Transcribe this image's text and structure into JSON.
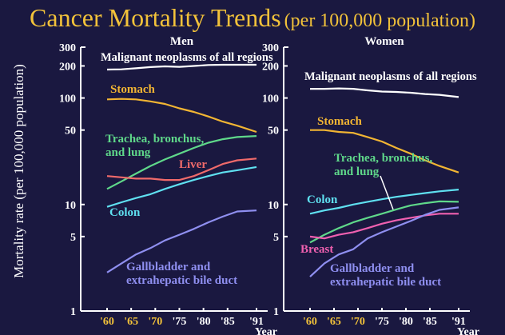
{
  "title": "Cancer Mortality Trends",
  "title_suffix": "(per 100,000 population)",
  "ylabel": "Mortality rate (per 100,000 population)",
  "colors": {
    "background": "#1a1840",
    "title": "#f2c23a",
    "axis": "#ffffff",
    "all": "#ffffff",
    "stomach": "#f2b533",
    "lung": "#5fd88a",
    "liver": "#f06a6a",
    "colon": "#5fe0f0",
    "gallbladder": "#8f8ff0",
    "breast": "#f060b0",
    "tick_highlight": "#f2c23a"
  },
  "chart_data": [
    {
      "type": "line",
      "title": "Men",
      "xlabel": "Year",
      "ylabel": "Mortality rate (per 100,000 population)",
      "yscale": "log",
      "ylim": [
        1,
        300
      ],
      "xlim": [
        1960,
        1991
      ],
      "yticks": [
        1,
        5,
        10,
        50,
        100,
        200,
        300
      ],
      "ytick_labels": [
        "1",
        "5",
        "10",
        "50",
        "100",
        "200",
        "300"
      ],
      "xticks": [
        1960,
        1965,
        1970,
        1975,
        1980,
        1985,
        1991
      ],
      "xtick_labels": [
        "'60",
        "'65",
        "'70",
        "'75",
        "'80",
        "'85",
        "'91"
      ],
      "x": [
        1960,
        1963,
        1966,
        1969,
        1972,
        1975,
        1978,
        1981,
        1984,
        1987,
        1991
      ],
      "series": [
        {
          "key": "all",
          "name": "Malignant neoplasms of all regions",
          "values": [
            185,
            186,
            190,
            195,
            198,
            196,
            200,
            204,
            205,
            205,
            205
          ]
        },
        {
          "key": "stomach",
          "name": "Stomach",
          "values": [
            97,
            98,
            97,
            93,
            88,
            80,
            74,
            67,
            60,
            55,
            48
          ]
        },
        {
          "key": "lung",
          "name": "Trachea, bronchus, and lung",
          "values": [
            14,
            16.5,
            19.5,
            23,
            26.5,
            30,
            34,
            38,
            41,
            43,
            44
          ]
        },
        {
          "key": "liver",
          "name": "Liver",
          "values": [
            18.5,
            18,
            17.5,
            17.5,
            17,
            17,
            18.5,
            21,
            24,
            26,
            27
          ]
        },
        {
          "key": "colon",
          "name": "Colon",
          "values": [
            9.5,
            10.5,
            11.5,
            12.5,
            14,
            15.5,
            17,
            18.5,
            20,
            21,
            22.5
          ]
        },
        {
          "key": "gallbladder",
          "name": "Gallbladder and extrahepatic bile duct",
          "values": [
            2.3,
            2.8,
            3.4,
            3.9,
            4.6,
            5.2,
            5.9,
            6.8,
            7.7,
            8.6,
            8.8
          ]
        }
      ]
    },
    {
      "type": "line",
      "title": "Women",
      "xlabel": "Year",
      "ylabel": "Mortality rate (per 100,000 population)",
      "yscale": "log",
      "ylim": [
        1,
        300
      ],
      "xlim": [
        1960,
        1991
      ],
      "yticks": [
        1,
        5,
        10,
        50,
        100,
        200,
        300
      ],
      "ytick_labels": [
        "1",
        "5",
        "10",
        "50",
        "100",
        "200",
        "300"
      ],
      "xticks": [
        1960,
        1965,
        1970,
        1975,
        1980,
        1985,
        1991
      ],
      "xtick_labels": [
        "'60",
        "'65",
        "'70",
        "'75",
        "'80",
        "'85",
        "'91"
      ],
      "x": [
        1960,
        1963,
        1966,
        1969,
        1972,
        1975,
        1978,
        1981,
        1984,
        1987,
        1991
      ],
      "series": [
        {
          "key": "all",
          "name": "Malignant neoplasms of all regions",
          "values": [
            122,
            122,
            123,
            122,
            118,
            115,
            114,
            112,
            109,
            107,
            102
          ]
        },
        {
          "key": "stomach",
          "name": "Stomach",
          "values": [
            50,
            50,
            48,
            47,
            43,
            39,
            34,
            30,
            26,
            23,
            20
          ]
        },
        {
          "key": "lung",
          "name": "Trachea, bronchus, and lung",
          "values": [
            4.4,
            5.2,
            6,
            6.8,
            7.5,
            8.2,
            9,
            9.8,
            10.3,
            10.7,
            10.6
          ]
        },
        {
          "key": "colon",
          "name": "Colon",
          "values": [
            8.2,
            8.8,
            9.3,
            10,
            10.6,
            11.2,
            11.8,
            12.3,
            12.8,
            13.3,
            13.8
          ]
        },
        {
          "key": "breast",
          "name": "Breast",
          "values": [
            5,
            4.8,
            5.2,
            5.5,
            6,
            6.6,
            7.1,
            7.5,
            7.9,
            8.2,
            8.2
          ]
        },
        {
          "key": "gallbladder",
          "name": "Gallbladder and extrahepatic bile duct",
          "values": [
            2.1,
            2.8,
            3.4,
            3.8,
            4.8,
            5.5,
            6.2,
            7,
            8,
            8.9,
            9.4
          ]
        }
      ]
    }
  ],
  "labels": {
    "men": [
      {
        "key": "all",
        "lines": [
          "Malignant neoplasms of all regions"
        ]
      },
      {
        "key": "stomach",
        "lines": [
          "Stomach"
        ]
      },
      {
        "key": "lung",
        "lines": [
          "Trachea, bronchus,",
          "and lung"
        ]
      },
      {
        "key": "liver",
        "lines": [
          "Liver"
        ]
      },
      {
        "key": "colon",
        "lines": [
          "Colon"
        ]
      },
      {
        "key": "gallbladder",
        "lines": [
          "Gallbladder and",
          "extrahepatic bile duct"
        ]
      }
    ],
    "women": [
      {
        "key": "all",
        "lines": [
          "Malignant neoplasms of all regions"
        ]
      },
      {
        "key": "stomach",
        "lines": [
          "Stomach"
        ]
      },
      {
        "key": "lung",
        "lines": [
          "Trachea, bronchus,",
          "and lung"
        ]
      },
      {
        "key": "colon",
        "lines": [
          "Colon"
        ]
      },
      {
        "key": "breast",
        "lines": [
          "Breast"
        ]
      },
      {
        "key": "gallbladder",
        "lines": [
          "Gallbladder and",
          "extrahepatic bile duct"
        ]
      }
    ]
  }
}
